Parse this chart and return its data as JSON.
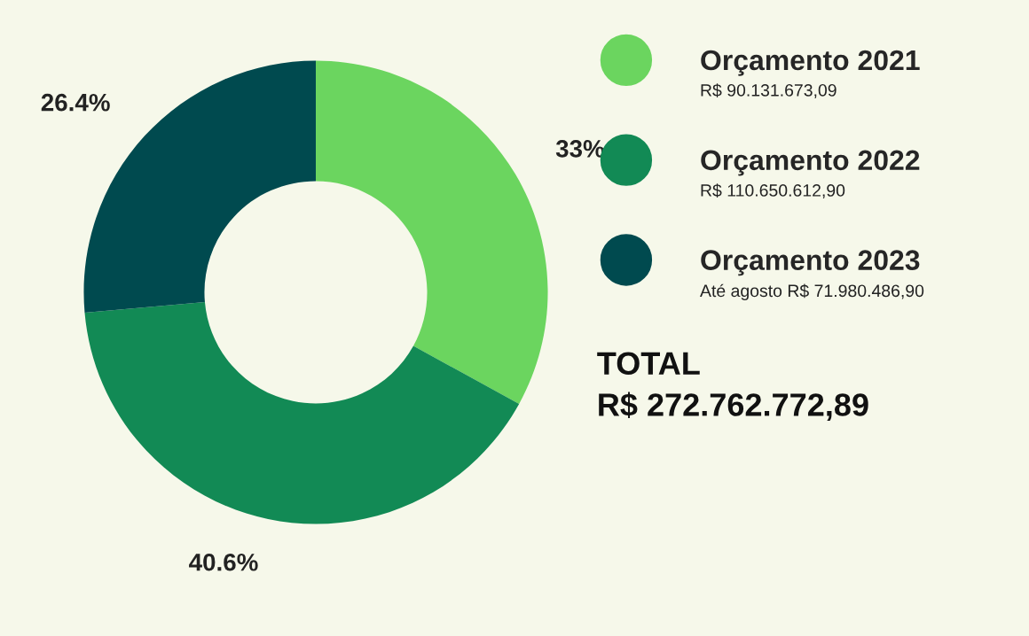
{
  "chart_data": {
    "type": "donut",
    "categories": [
      "Orçamento 2021",
      "Orçamento 2022",
      "Orçamento 2023"
    ],
    "values": [
      33,
      40.6,
      26.4
    ],
    "colors": [
      "#6bd55f",
      "#128a55",
      "#004a4f"
    ],
    "value_labels": [
      "33%",
      "40.6%",
      "26.4%"
    ],
    "legend": "right",
    "annotations": [
      "R$ 90.131.673,09",
      "R$ 110.650.612,90",
      "Até agosto R$ 71.980.486,90",
      "TOTAL",
      "R$ 272.762.772,89"
    ]
  }
}
